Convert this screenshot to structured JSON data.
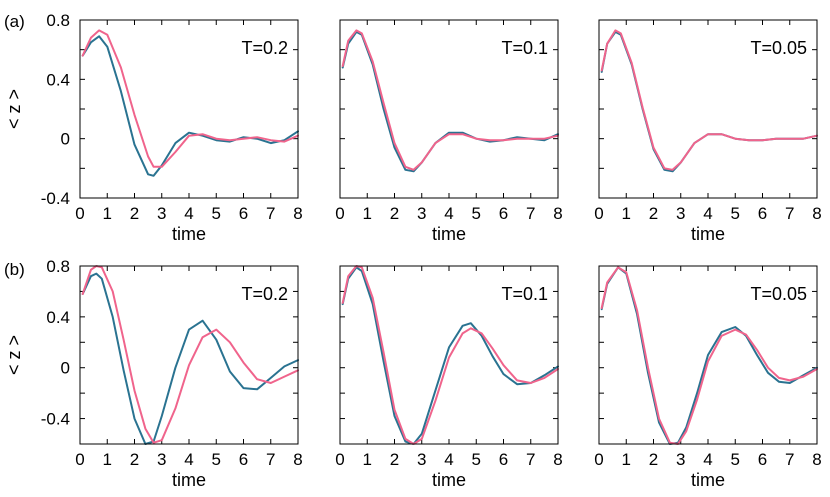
{
  "row_labels": [
    "(a)",
    "(b)"
  ],
  "chart_data": [
    {
      "type": "line",
      "panel": "a1",
      "title": "T=0.2",
      "xlabel": "time",
      "ylabel": "< z >",
      "xlim": [
        0,
        8
      ],
      "ylim": [
        -0.4,
        0.8
      ],
      "xticks": [
        "0",
        "1",
        "2",
        "3",
        "4",
        "5",
        "6",
        "7",
        "8"
      ],
      "yticks": [
        "-0.4",
        "0",
        "0.4",
        "0.8"
      ],
      "x": [
        0.1,
        0.4,
        0.7,
        1.0,
        1.5,
        2.0,
        2.5,
        2.7,
        3.0,
        3.5,
        4.0,
        4.5,
        5.0,
        5.5,
        6.0,
        6.5,
        7.0,
        7.5,
        8.0
      ],
      "series": [
        {
          "color": "#2a7391",
          "values": [
            0.56,
            0.65,
            0.69,
            0.62,
            0.32,
            -0.04,
            -0.24,
            -0.25,
            -0.18,
            -0.03,
            0.04,
            0.02,
            -0.01,
            -0.02,
            0.01,
            0.0,
            -0.03,
            -0.01,
            0.05
          ]
        },
        {
          "color": "#f0648c",
          "values": [
            0.56,
            0.68,
            0.73,
            0.7,
            0.48,
            0.16,
            -0.12,
            -0.19,
            -0.19,
            -0.09,
            0.02,
            0.03,
            0.0,
            -0.01,
            0.0,
            0.01,
            -0.01,
            -0.02,
            0.02
          ]
        }
      ]
    },
    {
      "type": "line",
      "panel": "a2",
      "title": "T=0.1",
      "xlim": [
        0,
        8
      ],
      "ylim": [
        -0.4,
        0.8
      ],
      "xticks": [
        "0",
        "1",
        "2",
        "3",
        "4",
        "5",
        "6",
        "7",
        "8"
      ],
      "xlabel": "time",
      "x": [
        0.1,
        0.3,
        0.6,
        0.8,
        1.2,
        1.6,
        2.0,
        2.4,
        2.7,
        3.0,
        3.5,
        4.0,
        4.5,
        5.0,
        5.5,
        6.0,
        6.5,
        7.0,
        7.5,
        8.0
      ],
      "series": [
        {
          "color": "#2a7391",
          "values": [
            0.48,
            0.64,
            0.72,
            0.7,
            0.5,
            0.2,
            -0.06,
            -0.21,
            -0.22,
            -0.16,
            -0.03,
            0.04,
            0.04,
            0.0,
            -0.02,
            -0.01,
            0.01,
            0.0,
            -0.01,
            0.03
          ]
        },
        {
          "color": "#f0648c",
          "values": [
            0.49,
            0.66,
            0.73,
            0.71,
            0.52,
            0.24,
            -0.03,
            -0.19,
            -0.21,
            -0.16,
            -0.03,
            0.03,
            0.03,
            0.0,
            -0.01,
            -0.01,
            0.0,
            0.0,
            0.0,
            0.02
          ]
        }
      ]
    },
    {
      "type": "line",
      "panel": "a3",
      "title": "T=0.05",
      "xlim": [
        0,
        8
      ],
      "ylim": [
        -0.4,
        0.8
      ],
      "xticks": [
        "0",
        "1",
        "2",
        "3",
        "4",
        "5",
        "6",
        "7",
        "8"
      ],
      "xlabel": "time",
      "x": [
        0.1,
        0.3,
        0.6,
        0.8,
        1.2,
        1.6,
        2.0,
        2.4,
        2.7,
        3.0,
        3.5,
        4.0,
        4.5,
        5.0,
        5.5,
        6.0,
        6.5,
        7.0,
        7.5,
        8.0
      ],
      "series": [
        {
          "color": "#2a7391",
          "values": [
            0.45,
            0.64,
            0.72,
            0.7,
            0.5,
            0.2,
            -0.07,
            -0.21,
            -0.22,
            -0.16,
            -0.03,
            0.03,
            0.03,
            0.0,
            -0.01,
            -0.01,
            0.0,
            0.0,
            0.0,
            0.02
          ]
        },
        {
          "color": "#f0648c",
          "values": [
            0.46,
            0.64,
            0.73,
            0.71,
            0.51,
            0.21,
            -0.06,
            -0.2,
            -0.21,
            -0.16,
            -0.03,
            0.03,
            0.03,
            0.0,
            -0.01,
            -0.01,
            0.0,
            0.0,
            0.0,
            0.02
          ]
        }
      ]
    },
    {
      "type": "line",
      "panel": "b1",
      "title": "T=0.2",
      "xlabel": "time",
      "ylabel": "< z >",
      "xlim": [
        0,
        8
      ],
      "ylim": [
        -0.6,
        0.8
      ],
      "xticks": [
        "0",
        "1",
        "2",
        "3",
        "4",
        "5",
        "6",
        "7",
        "8"
      ],
      "yticks": [
        "-0.4",
        "0",
        "0.4",
        "0.8"
      ],
      "x": [
        0.1,
        0.4,
        0.6,
        0.8,
        1.2,
        1.6,
        2.0,
        2.4,
        2.7,
        3.0,
        3.5,
        4.0,
        4.5,
        5.0,
        5.5,
        6.0,
        6.5,
        7.0,
        7.5,
        8.0
      ],
      "series": [
        {
          "color": "#2a7391",
          "values": [
            0.58,
            0.72,
            0.74,
            0.7,
            0.4,
            -0.02,
            -0.4,
            -0.6,
            -0.58,
            -0.38,
            0.0,
            0.3,
            0.37,
            0.22,
            -0.03,
            -0.16,
            -0.17,
            -0.08,
            0.01,
            0.06
          ]
        },
        {
          "color": "#f0648c",
          "values": [
            0.58,
            0.77,
            0.8,
            0.79,
            0.6,
            0.22,
            -0.18,
            -0.48,
            -0.59,
            -0.57,
            -0.32,
            0.02,
            0.24,
            0.3,
            0.2,
            0.04,
            -0.09,
            -0.12,
            -0.07,
            -0.02
          ]
        }
      ]
    },
    {
      "type": "line",
      "panel": "b2",
      "title": "T=0.1",
      "xlim": [
        0,
        8
      ],
      "ylim": [
        -0.6,
        0.8
      ],
      "xticks": [
        "0",
        "1",
        "2",
        "3",
        "4",
        "5",
        "6",
        "7",
        "8"
      ],
      "xlabel": "time",
      "x": [
        0.1,
        0.3,
        0.6,
        0.8,
        1.2,
        1.6,
        2.0,
        2.4,
        2.7,
        3.0,
        3.5,
        4.0,
        4.5,
        4.8,
        5.2,
        5.6,
        6.0,
        6.5,
        7.0,
        7.5,
        8.0
      ],
      "series": [
        {
          "color": "#2a7391",
          "values": [
            0.5,
            0.7,
            0.79,
            0.76,
            0.5,
            0.05,
            -0.38,
            -0.58,
            -0.6,
            -0.52,
            -0.18,
            0.16,
            0.33,
            0.35,
            0.25,
            0.09,
            -0.05,
            -0.13,
            -0.12,
            -0.06,
            0.01
          ]
        },
        {
          "color": "#f0648c",
          "values": [
            0.51,
            0.72,
            0.8,
            0.79,
            0.55,
            0.12,
            -0.33,
            -0.56,
            -0.6,
            -0.56,
            -0.26,
            0.08,
            0.27,
            0.31,
            0.27,
            0.15,
            0.02,
            -0.1,
            -0.12,
            -0.08,
            -0.01
          ]
        }
      ]
    },
    {
      "type": "line",
      "panel": "b3",
      "title": "T=0.05",
      "xlim": [
        0,
        8
      ],
      "ylim": [
        -0.6,
        0.8
      ],
      "xticks": [
        "0",
        "1",
        "2",
        "3",
        "4",
        "5",
        "6",
        "7",
        "8"
      ],
      "xlabel": "time",
      "x": [
        0.1,
        0.3,
        0.7,
        1.0,
        1.4,
        1.8,
        2.2,
        2.6,
        2.9,
        3.2,
        3.6,
        4.0,
        4.5,
        5.0,
        5.4,
        5.8,
        6.2,
        6.6,
        7.0,
        7.5,
        8.0
      ],
      "series": [
        {
          "color": "#2a7391",
          "values": [
            0.46,
            0.66,
            0.79,
            0.74,
            0.42,
            -0.04,
            -0.43,
            -0.6,
            -0.59,
            -0.47,
            -0.2,
            0.1,
            0.28,
            0.32,
            0.25,
            0.1,
            -0.04,
            -0.11,
            -0.12,
            -0.06,
            0.0
          ]
        },
        {
          "color": "#f0648c",
          "values": [
            0.47,
            0.67,
            0.79,
            0.75,
            0.45,
            0.0,
            -0.4,
            -0.59,
            -0.6,
            -0.5,
            -0.25,
            0.05,
            0.25,
            0.3,
            0.26,
            0.14,
            0.0,
            -0.08,
            -0.1,
            -0.07,
            -0.01
          ]
        }
      ]
    }
  ]
}
